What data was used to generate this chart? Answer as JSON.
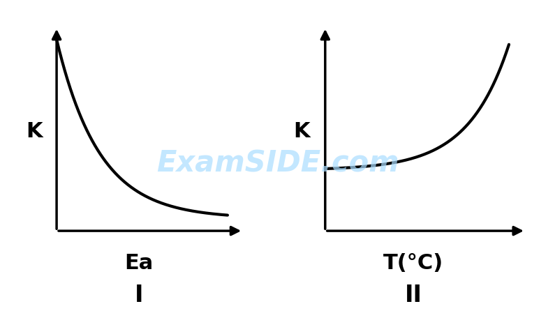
{
  "background_color": "#ffffff",
  "graph1": {
    "xlabel": "Ea",
    "ylabel": "K",
    "label_roman": "I",
    "line_color": "#000000",
    "line_width": 3.0
  },
  "graph2": {
    "xlabel": "T(°C)",
    "ylabel": "K",
    "label_roman": "II",
    "line_color": "#000000",
    "line_width": 3.0
  },
  "watermark_text": "ExamSIDE.com",
  "watermark_color": "#aaddff",
  "watermark_alpha": 0.7,
  "axis_lw": 2.5,
  "arrow_mutation_scale": 20,
  "label_fontsize": 22,
  "roman_fontsize": 24
}
